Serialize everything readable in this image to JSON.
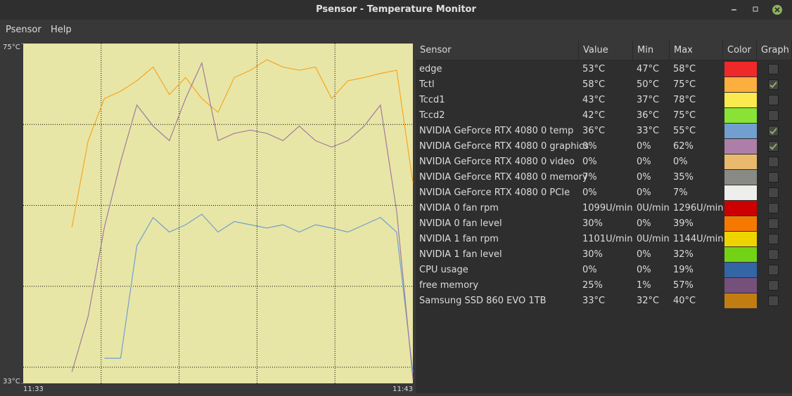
{
  "window": {
    "title": "Psensor - Temperature Monitor"
  },
  "menu": [
    "Psensor",
    "Help"
  ],
  "chart_data": {
    "type": "line",
    "x": [
      "11:33",
      null,
      null,
      null,
      null,
      null,
      null,
      null,
      null,
      null,
      null,
      null,
      null,
      null,
      null,
      null,
      null,
      null,
      null,
      null,
      null,
      null,
      null,
      null,
      "11:43"
    ],
    "ylim": [
      33,
      75
    ],
    "yticks": [
      {
        "value": 75,
        "label": "75°C"
      },
      {
        "value": 33,
        "label": "33°C"
      }
    ],
    "grid": true,
    "background": "#e8e6a6",
    "series": [
      {
        "color": "#f5a623",
        "values": [
          null,
          null,
          null,
          52.3,
          63,
          68.2,
          69.1,
          70.4,
          72.1,
          68.7,
          70.8,
          68.2,
          66.5,
          70.8,
          71.7,
          73,
          72.1,
          71.7,
          72.1,
          68.2,
          70.4,
          70.8,
          71.3,
          71.7,
          57.8
        ]
      },
      {
        "color": "#6f9fd0",
        "values": [
          null,
          null,
          null,
          null,
          null,
          36.1,
          36.1,
          50,
          53.5,
          51.7,
          52.6,
          53.9,
          51.7,
          53,
          52.6,
          52.2,
          52.6,
          51.7,
          52.6,
          52.2,
          51.7,
          52.6,
          53.5,
          51.7,
          34.4
        ]
      },
      {
        "color": "#a07aa0",
        "values": [
          null,
          null,
          null,
          34.4,
          41.3,
          52.3,
          60.4,
          67.4,
          64.8,
          63,
          68.2,
          72.6,
          63,
          63.9,
          64.3,
          63.9,
          63,
          64.8,
          63,
          62.2,
          63,
          64.8,
          67.4,
          54.3,
          33.5
        ]
      }
    ]
  },
  "table": {
    "columns": [
      "Sensor",
      "Value",
      "Min",
      "Max",
      "Color",
      "Graph"
    ],
    "rows": [
      {
        "sensor": "edge",
        "value": "53°C",
        "min": "47°C",
        "max": "58°C",
        "color": "#ef2929",
        "graph": false
      },
      {
        "sensor": "Tctl",
        "value": "58°C",
        "min": "50°C",
        "max": "75°C",
        "color": "#fcaf3e",
        "graph": true
      },
      {
        "sensor": "Tccd1",
        "value": "43°C",
        "min": "37°C",
        "max": "78°C",
        "color": "#fce94f",
        "graph": false
      },
      {
        "sensor": "Tccd2",
        "value": "42°C",
        "min": "36°C",
        "max": "75°C",
        "color": "#8ae234",
        "graph": false
      },
      {
        "sensor": "NVIDIA GeForce RTX 4080 0 temp",
        "value": "36°C",
        "min": "33°C",
        "max": "55°C",
        "color": "#729fcf",
        "graph": true
      },
      {
        "sensor": "NVIDIA GeForce RTX 4080 0 graphics",
        "value": "0%",
        "min": "0%",
        "max": "62%",
        "color": "#ad7fa8",
        "graph": true
      },
      {
        "sensor": "NVIDIA GeForce RTX 4080 0 video",
        "value": "0%",
        "min": "0%",
        "max": "0%",
        "color": "#e9b96e",
        "graph": false
      },
      {
        "sensor": "NVIDIA GeForce RTX 4080 0 memory",
        "value": "7%",
        "min": "0%",
        "max": "35%",
        "color": "#888a85",
        "graph": false
      },
      {
        "sensor": "NVIDIA GeForce RTX 4080 0 PCIe",
        "value": "0%",
        "min": "0%",
        "max": "7%",
        "color": "#eeeeec",
        "graph": false
      },
      {
        "sensor": "NVIDIA 0 fan rpm",
        "value": "1099U/min",
        "min": "0U/min",
        "max": "1296U/min",
        "color": "#cc0000",
        "graph": false
      },
      {
        "sensor": "NVIDIA 0 fan level",
        "value": "30%",
        "min": "0%",
        "max": "39%",
        "color": "#f57900",
        "graph": false
      },
      {
        "sensor": "NVIDIA 1 fan rpm",
        "value": "1101U/min",
        "min": "0U/min",
        "max": "1144U/min",
        "color": "#edd400",
        "graph": false
      },
      {
        "sensor": "NVIDIA 1 fan level",
        "value": "30%",
        "min": "0%",
        "max": "32%",
        "color": "#73d216",
        "graph": false
      },
      {
        "sensor": "CPU usage",
        "value": "0%",
        "min": "0%",
        "max": "19%",
        "color": "#3465a4",
        "graph": false
      },
      {
        "sensor": "free memory",
        "value": "25%",
        "min": "1%",
        "max": "57%",
        "color": "#75507b",
        "graph": false
      },
      {
        "sensor": "Samsung SSD 860 EVO 1TB",
        "value": "33°C",
        "min": "32°C",
        "max": "40°C",
        "color": "#c17d11",
        "graph": false
      }
    ]
  }
}
